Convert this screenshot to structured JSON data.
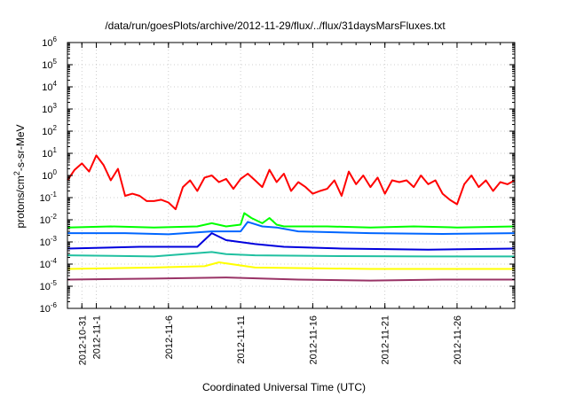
{
  "chart_data": {
    "type": "line",
    "title": "/data/run/goesPlots/archive/2012-11-29/flux/../flux/31daysMarsFluxes.txt",
    "xlabel": "Coordinated Universal Time (UTC)",
    "ylabel_parts": [
      "protons/cm",
      "2",
      "-s-sr-MeV"
    ],
    "yscale": "log",
    "ylim": [
      1e-06,
      1000000.0
    ],
    "xlim": [
      "2012-10-30T00:00",
      "2012-11-30T00:00"
    ],
    "grid": true,
    "y_ticks": [
      {
        "exp": "-6",
        "value": 1e-06
      },
      {
        "exp": "-5",
        "value": 1e-05
      },
      {
        "exp": "-4",
        "value": 0.0001
      },
      {
        "exp": "-3",
        "value": 0.001
      },
      {
        "exp": "-2",
        "value": 0.01
      },
      {
        "exp": "-1",
        "value": 0.1
      },
      {
        "exp": "0",
        "value": 1
      },
      {
        "exp": "1",
        "value": 10.0
      },
      {
        "exp": "2",
        "value": 100.0
      },
      {
        "exp": "3",
        "value": 1000.0
      },
      {
        "exp": "4",
        "value": 10000.0
      },
      {
        "exp": "5",
        "value": 100000.0
      },
      {
        "exp": "6",
        "value": 1000000.0
      }
    ],
    "y_tick_base": "10",
    "x_ticks": [
      "2012-10-31",
      "2012-11-1",
      "2012-11-6",
      "2012-11-11",
      "2012-11-16",
      "2012-11-21",
      "2012-11-26"
    ],
    "x_tick_dates": [
      "2012-10-31T00:00",
      "2012-11-01T00:00",
      "2012-11-06T00:00",
      "2012-11-11T00:00",
      "2012-11-16T00:00",
      "2012-11-21T00:00",
      "2012-11-26T00:00"
    ],
    "series": [
      {
        "color": "#ff0000",
        "x": [
          "2012-10-30T00:00",
          "2012-10-30T12:00",
          "2012-10-31T00:00",
          "2012-10-31T12:00",
          "2012-11-01T00:00",
          "2012-11-01T12:00",
          "2012-11-02T00:00",
          "2012-11-02T12:00",
          "2012-11-03T00:00",
          "2012-11-03T12:00",
          "2012-11-04T00:00",
          "2012-11-04T12:00",
          "2012-11-05T00:00",
          "2012-11-05T12:00",
          "2012-11-06T00:00",
          "2012-11-06T12:00",
          "2012-11-07T00:00",
          "2012-11-07T12:00",
          "2012-11-08T00:00",
          "2012-11-08T12:00",
          "2012-11-09T00:00",
          "2012-11-09T12:00",
          "2012-11-10T00:00",
          "2012-11-10T12:00",
          "2012-11-11T00:00",
          "2012-11-11T12:00",
          "2012-11-12T00:00",
          "2012-11-12T12:00",
          "2012-11-13T00:00",
          "2012-11-13T12:00",
          "2012-11-14T00:00",
          "2012-11-14T12:00",
          "2012-11-15T00:00",
          "2012-11-15T12:00",
          "2012-11-16T00:00",
          "2012-11-16T12:00",
          "2012-11-17T00:00",
          "2012-11-17T12:00",
          "2012-11-18T00:00",
          "2012-11-18T12:00",
          "2012-11-19T00:00",
          "2012-11-19T12:00",
          "2012-11-20T00:00",
          "2012-11-20T12:00",
          "2012-11-21T00:00",
          "2012-11-21T12:00",
          "2012-11-22T00:00",
          "2012-11-22T12:00",
          "2012-11-23T00:00",
          "2012-11-23T12:00",
          "2012-11-24T00:00",
          "2012-11-24T12:00",
          "2012-11-25T00:00",
          "2012-11-25T12:00",
          "2012-11-26T00:00",
          "2012-11-26T12:00",
          "2012-11-27T00:00",
          "2012-11-27T12:00",
          "2012-11-28T00:00",
          "2012-11-28T12:00",
          "2012-11-29T00:00",
          "2012-11-29T12:00",
          "2012-11-30T00:00"
        ],
        "values": [
          0.6,
          1.8,
          3.5,
          1.5,
          8,
          3,
          0.6,
          2,
          0.12,
          0.15,
          0.12,
          0.07,
          0.07,
          0.08,
          0.06,
          0.03,
          0.3,
          0.6,
          0.2,
          0.8,
          1.0,
          0.5,
          0.7,
          0.25,
          0.7,
          1.2,
          0.6,
          0.3,
          1.8,
          0.5,
          1.2,
          0.2,
          0.5,
          0.3,
          0.15,
          0.2,
          0.25,
          0.6,
          0.12,
          1.5,
          0.4,
          1.0,
          0.3,
          0.8,
          0.15,
          0.6,
          0.5,
          0.6,
          0.3,
          1.0,
          0.4,
          0.6,
          0.15,
          0.08,
          0.05,
          0.4,
          1.0,
          0.3,
          0.6,
          0.2,
          0.5,
          0.4,
          0.6
        ]
      },
      {
        "color": "#00ff00",
        "x": [
          "2012-10-30T00:00",
          "2012-11-02T00:00",
          "2012-11-05T00:00",
          "2012-11-08T00:00",
          "2012-11-09T00:00",
          "2012-11-10T00:00",
          "2012-11-11T00:00",
          "2012-11-11T06:00",
          "2012-11-11T18:00",
          "2012-11-12T12:00",
          "2012-11-13T00:00",
          "2012-11-13T12:00",
          "2012-11-14T00:00",
          "2012-11-17T00:00",
          "2012-11-20T00:00",
          "2012-11-23T00:00",
          "2012-11-26T00:00",
          "2012-11-30T00:00"
        ],
        "values": [
          0.0045,
          0.005,
          0.0045,
          0.005,
          0.007,
          0.005,
          0.006,
          0.02,
          0.012,
          0.007,
          0.012,
          0.006,
          0.005,
          0.005,
          0.0045,
          0.005,
          0.0045,
          0.005
        ]
      },
      {
        "color": "#0066ff",
        "x": [
          "2012-10-30T00:00",
          "2012-11-03T00:00",
          "2012-11-06T00:00",
          "2012-11-09T00:00",
          "2012-11-11T00:00",
          "2012-11-11T12:00",
          "2012-11-12T12:00",
          "2012-11-13T12:00",
          "2012-11-15T00:00",
          "2012-11-20T00:00",
          "2012-11-25T00:00",
          "2012-11-30T00:00"
        ],
        "values": [
          0.0025,
          0.0025,
          0.0022,
          0.003,
          0.003,
          0.008,
          0.005,
          0.0045,
          0.003,
          0.0025,
          0.0023,
          0.0025
        ]
      },
      {
        "color": "#0000dd",
        "x": [
          "2012-10-30T00:00",
          "2012-11-04T00:00",
          "2012-11-08T00:00",
          "2012-11-09T00:00",
          "2012-11-10T00:00",
          "2012-11-12T00:00",
          "2012-11-14T00:00",
          "2012-11-18T00:00",
          "2012-11-24T00:00",
          "2012-11-30T00:00"
        ],
        "values": [
          0.0005,
          0.0006,
          0.0006,
          0.0025,
          0.0012,
          0.0008,
          0.0006,
          0.0005,
          0.00045,
          0.0005
        ]
      },
      {
        "color": "#20c0a0",
        "x": [
          "2012-10-30T00:00",
          "2012-11-05T00:00",
          "2012-11-09T00:00",
          "2012-11-10T00:00",
          "2012-11-12T00:00",
          "2012-11-18T00:00",
          "2012-11-24T00:00",
          "2012-11-30T00:00"
        ],
        "values": [
          0.00025,
          0.00022,
          0.00035,
          0.00028,
          0.00025,
          0.00023,
          0.00022,
          0.00022
        ]
      },
      {
        "color": "#ffff00",
        "x": [
          "2012-10-30T00:00",
          "2012-11-05T00:00",
          "2012-11-08T12:00",
          "2012-11-09T12:00",
          "2012-11-12T00:00",
          "2012-11-20T00:00",
          "2012-11-30T00:00"
        ],
        "values": [
          6e-05,
          7e-05,
          8e-05,
          0.00012,
          7e-05,
          6e-05,
          6e-05
        ]
      },
      {
        "color": "#993366",
        "x": [
          "2012-10-30T00:00",
          "2012-11-05T00:00",
          "2012-11-10T00:00",
          "2012-11-15T00:00",
          "2012-11-20T00:00",
          "2012-11-25T00:00",
          "2012-11-30T00:00"
        ],
        "values": [
          2e-05,
          2.2e-05,
          2.5e-05,
          2e-05,
          1.8e-05,
          2e-05,
          2e-05
        ]
      }
    ]
  }
}
